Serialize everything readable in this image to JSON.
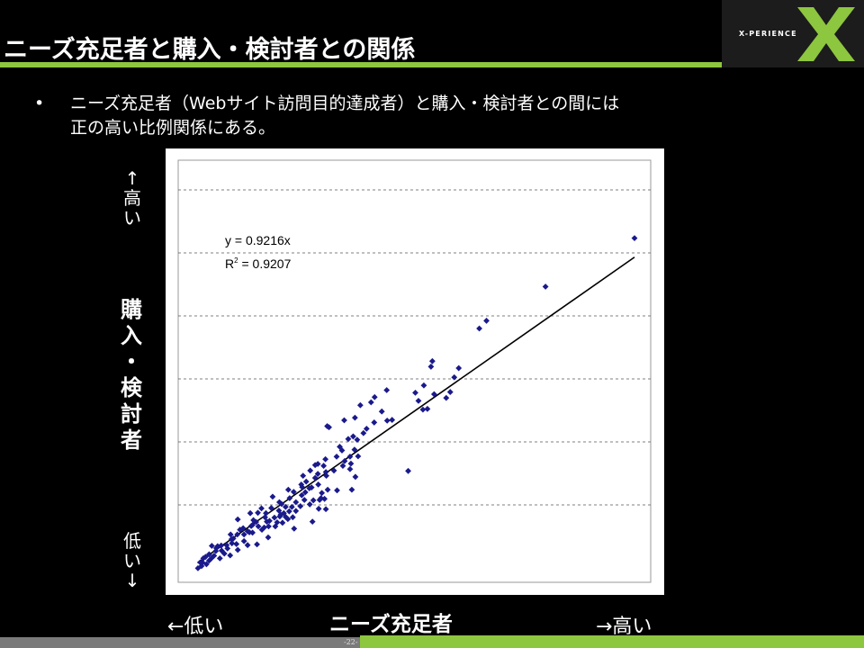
{
  "slide": {
    "title": "ニーズ充足者と購入・検討者との関係",
    "bullet_symbol": "•",
    "bullet_line1": "ニーズ充足者（Webサイト訪問目的達成者）と購入・検討者との間には",
    "bullet_line2": "正の高い比例関係にある。",
    "page_number": "-22-"
  },
  "logo": {
    "text": "X-PERIENCE",
    "accent_color": "#8dc63f",
    "icon": "x-mark-icon"
  },
  "axis_labels": {
    "y_high": [
      "↑",
      "高",
      "い"
    ],
    "y_main": [
      "購",
      "入",
      "・",
      "検",
      "討",
      "者"
    ],
    "y_low": [
      "低",
      "い",
      "↓"
    ],
    "x_main": "ニーズ充足者",
    "x_low": "←低い",
    "x_high": "→高い"
  },
  "chart_data": {
    "type": "scatter",
    "grid": "horizontal-dashed",
    "x_range": [
      0,
      100
    ],
    "y_range": [
      0,
      100
    ],
    "marker_color": "#1a1a8c",
    "trend": {
      "slope": 0.9216,
      "equation": "y = 0.9216x",
      "r2_prefix": "R",
      "r2_sup": "2",
      "r2_value": " = 0.9207"
    },
    "points": [
      [
        99.2,
        89.8
      ],
      [
        79.3,
        76.6
      ],
      [
        66.1,
        67.3
      ],
      [
        64.5,
        65.2
      ],
      [
        58.9,
        51.9
      ],
      [
        54.0,
        56.3
      ],
      [
        59.9,
        54.4
      ],
      [
        53.7,
        54.8
      ],
      [
        52.1,
        49.7
      ],
      [
        54.4,
        47.3
      ],
      [
        57.1,
        46.3
      ],
      [
        58.0,
        47.9
      ],
      [
        50.2,
        47.7
      ],
      [
        50.9,
        45.5
      ],
      [
        51.9,
        43.1
      ],
      [
        52.9,
        43.3
      ],
      [
        43.8,
        48.4
      ],
      [
        41.1,
        46.5
      ],
      [
        40.3,
        45.1
      ],
      [
        37.9,
        44.3
      ],
      [
        42.7,
        42.6
      ],
      [
        41.0,
        39.6
      ],
      [
        45.0,
        40.3
      ],
      [
        43.9,
        40.1
      ],
      [
        36.7,
        40.9
      ],
      [
        34.3,
        40.2
      ],
      [
        30.5,
        38.6
      ],
      [
        30.9,
        38.3
      ],
      [
        39.3,
        37.9
      ],
      [
        35.2,
        35.1
      ],
      [
        36.6,
        32.2
      ],
      [
        37.4,
        30.4
      ],
      [
        35.8,
        28.4
      ],
      [
        35.6,
        26.9
      ],
      [
        34.0,
        27.8
      ],
      [
        34.4,
        29.1
      ],
      [
        35.6,
        30.3
      ],
      [
        48.6,
        26.4
      ],
      [
        36.8,
        24.8
      ],
      [
        36.0,
        21.3
      ],
      [
        32.0,
        26.5
      ],
      [
        30.2,
        26.1
      ],
      [
        30.3,
        25.1
      ],
      [
        28.4,
        25.6
      ],
      [
        27.8,
        24.5
      ],
      [
        28.5,
        22.7
      ],
      [
        30.6,
        21.3
      ],
      [
        29.3,
        20.4
      ],
      [
        29.1,
        19.0
      ],
      [
        27.4,
        18.4
      ],
      [
        28.8,
        18.5
      ],
      [
        26.6,
        17.3
      ],
      [
        30.2,
        16.0
      ],
      [
        24.8,
        19.8
      ],
      [
        24.9,
        22.0
      ],
      [
        25.6,
        20.6
      ],
      [
        24.5,
        16.8
      ],
      [
        23.5,
        17.9
      ],
      [
        22.6,
        16.6
      ],
      [
        21.2,
        16.6
      ],
      [
        22.0,
        15.4
      ],
      [
        21.2,
        13.9
      ],
      [
        20.1,
        14.5
      ],
      [
        18.7,
        13.7
      ],
      [
        18.9,
        11.3
      ],
      [
        19.3,
        12.4
      ],
      [
        17.0,
        12.6
      ],
      [
        16.6,
        13.8
      ],
      [
        17.4,
        11.3
      ],
      [
        15.9,
        10.4
      ],
      [
        15.1,
        11.3
      ],
      [
        14.6,
        12.5
      ],
      [
        13.5,
        11.4
      ],
      [
        12.7,
        10.0
      ],
      [
        13.8,
        9.6
      ],
      [
        11.9,
        9.1
      ],
      [
        10.4,
        9.1
      ],
      [
        11.9,
        7.3
      ],
      [
        9.5,
        8.0
      ],
      [
        9.2,
        6.7
      ],
      [
        10.2,
        6.5
      ],
      [
        8.0,
        6.2
      ],
      [
        6.8,
        6.1
      ],
      [
        6.0,
        5.9
      ],
      [
        5.6,
        4.6
      ],
      [
        5.2,
        3.3
      ],
      [
        6.9,
        4.7
      ],
      [
        7.5,
        3.9
      ],
      [
        4.6,
        2.6
      ],
      [
        4.1,
        3.7
      ],
      [
        4.1,
        2.0
      ],
      [
        2.6,
        1.5
      ],
      [
        3.5,
        1.0
      ],
      [
        2.4,
        0.5
      ],
      [
        1.6,
        -0.1
      ],
      [
        2.1,
        1.5
      ],
      [
        3.3,
        3.0
      ],
      [
        2.8,
        2.6
      ],
      [
        5.7,
        5.4
      ],
      [
        4.7,
        6.0
      ],
      [
        8.2,
        5.3
      ],
      [
        9.1,
        7.8
      ],
      [
        8.9,
        9.1
      ],
      [
        11.0,
        10.4
      ],
      [
        11.7,
        10.8
      ],
      [
        13.1,
        9.7
      ],
      [
        13.8,
        11.7
      ],
      [
        14.0,
        13.0
      ],
      [
        16.4,
        11.0
      ],
      [
        15.0,
        15.0
      ],
      [
        17.6,
        12.8
      ],
      [
        16.8,
        14.9
      ],
      [
        18.0,
        16.3
      ],
      [
        19.8,
        17.9
      ],
      [
        19.7,
        15.6
      ],
      [
        20.8,
        14.9
      ],
      [
        19.9,
        14.0
      ],
      [
        21.7,
        13.3
      ],
      [
        22.8,
        13.8
      ],
      [
        23.5,
        15.5
      ],
      [
        25.4,
        18.5
      ],
      [
        26.5,
        21.7
      ],
      [
        25.8,
        23.5
      ],
      [
        27.0,
        21.9
      ],
      [
        20.3,
        17.4
      ],
      [
        22.1,
        19.0
      ],
      [
        23.0,
        20.7
      ],
      [
        25.1,
        25.1
      ],
      [
        27.8,
        28.0
      ],
      [
        29.7,
        27.8
      ],
      [
        30.1,
        29.6
      ],
      [
        32.6,
        30.3
      ],
      [
        29.9,
        18.8
      ],
      [
        28.6,
        16.1
      ],
      [
        32.7,
        21.1
      ],
      [
        20.5,
        12.3
      ],
      [
        12.7,
        6.2
      ],
      [
        10.5,
        4.9
      ],
      [
        14.8,
        6.4
      ],
      [
        17.3,
        8.3
      ],
      [
        23.1,
        10.7
      ],
      [
        27.2,
        12.6
      ],
      [
        6.5,
        2.6
      ],
      [
        8.8,
        3.4
      ],
      [
        10.5,
        13.2
      ],
      [
        13.3,
        14.9
      ],
      [
        15.8,
        16.2
      ],
      [
        18.3,
        19.4
      ],
      [
        21.8,
        21.3
      ],
      [
        24.7,
        22.7
      ],
      [
        26.7,
        26.5
      ],
      [
        28.4,
        28.3
      ],
      [
        33.3,
        33.0
      ],
      [
        33.8,
        32.0
      ],
      [
        36.3,
        35.8
      ],
      [
        37.2,
        34.9
      ],
      [
        38.6,
        36.7
      ]
    ]
  }
}
